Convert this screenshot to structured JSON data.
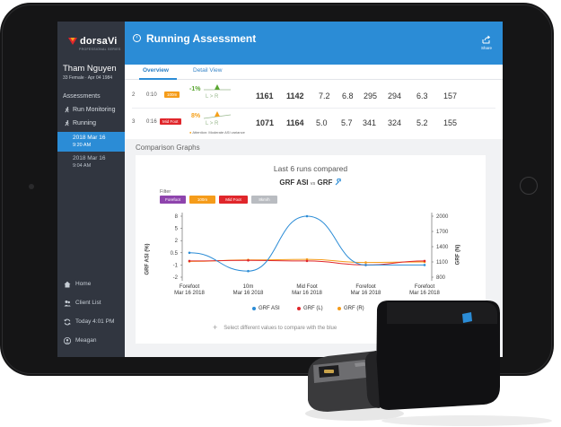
{
  "app": {
    "brand": "dorsaVi",
    "brand_tagline": "PROFESSIONAL SERIES"
  },
  "sidebar": {
    "patient_name": "Tham Nguyen",
    "patient_details": "33 Female · Apr 04 1984",
    "menu_label": "Assessments",
    "items": [
      {
        "label": "Run Monitoring",
        "icon": "runner-icon"
      },
      {
        "label": "Running",
        "icon": "runner-icon"
      }
    ],
    "runs": [
      {
        "date": "2018 Mar 16",
        "time": "9:20 AM",
        "active": true
      },
      {
        "date": "2018 Mar 16",
        "time": "9:04 AM",
        "active": false
      }
    ],
    "bottom": [
      {
        "label": "Home",
        "icon": "home-icon"
      },
      {
        "label": "Client List",
        "icon": "users-icon"
      },
      {
        "label": "Today 4:01 PM",
        "icon": "sync-icon"
      },
      {
        "label": "Meagan",
        "icon": "user-icon"
      }
    ]
  },
  "header": {
    "title": "Running Assessment",
    "share_label": "Share",
    "tabs": [
      "Overview",
      "Detail View"
    ]
  },
  "table": {
    "rows": [
      {
        "index": "2",
        "time": "0:10",
        "tag": "100m",
        "tag_color": "#f59c1a",
        "pct": "-1%",
        "pct_color": "#5aa631",
        "lr": "L > R",
        "v1": "1161",
        "v2": "1142",
        "v3": "7.2",
        "v4": "6.8",
        "v5": "295",
        "v6": "294",
        "v7": "6.3",
        "v8": "157"
      },
      {
        "index": "3",
        "time": "0:16",
        "tag": "Mid Foot",
        "tag_color": "#e0262b",
        "pct": "8%",
        "pct_color": "#f5a01a",
        "lr": "L > R",
        "warning": "Attention: Moderate ASI variance",
        "v1": "1071",
        "v2": "1164",
        "v3": "5.0",
        "v4": "5.7",
        "v5": "341",
        "v6": "324",
        "v7": "5.2",
        "v8": "155"
      }
    ]
  },
  "comparison": {
    "section_title": "Comparison Graphs",
    "subtitle": "Last 6 runs compared",
    "title_left": "GRF ASI",
    "title_vs": "vs",
    "title_right": "GRF",
    "filter_label": "Filter",
    "filters": [
      {
        "label": "Forefoot",
        "color": "#8e44ad"
      },
      {
        "label": "100m",
        "color": "#f59c1a"
      },
      {
        "label": "Mid Foot",
        "color": "#e0262b"
      },
      {
        "label": "8km/h",
        "color": "#b9bcc1"
      }
    ],
    "legend": [
      {
        "label": "GRF ASI",
        "color": "#2b8cd6"
      },
      {
        "label": "GRF (L)",
        "color": "#e0262b"
      },
      {
        "label": "GRF (R)",
        "color": "#f59c1a"
      }
    ],
    "hint": "Select different values to compare with the blue"
  },
  "chart_data": {
    "type": "line",
    "x_labels": [
      {
        "top": "Forefoot",
        "bottom": "Mar 16 2018"
      },
      {
        "top": "10m",
        "bottom": "Mar 16 2018"
      },
      {
        "top": "Mid Foot",
        "bottom": "Mar 16 2018"
      },
      {
        "top": "Forefoot",
        "bottom": "Mar 16 2018"
      },
      {
        "top": "Forefoot",
        "bottom": "Mar 16 2018"
      }
    ],
    "y_left": {
      "label": "GRF ASI (%)",
      "ticks": [
        "8",
        "5",
        "2",
        "0.5",
        "-1",
        "-2"
      ]
    },
    "y_right": {
      "label": "GRF (N)",
      "ticks": [
        "2000",
        "1700",
        "1400",
        "1100",
        "800"
      ]
    },
    "series": [
      {
        "name": "GRF ASI",
        "color": "#2b8cd6",
        "axis": "left",
        "values": [
          0.5,
          -1.5,
          8,
          -1,
          -1
        ]
      },
      {
        "name": "GRF (L)",
        "color": "#e0262b",
        "axis": "right",
        "values": [
          1120,
          1130,
          1120,
          1040,
          1120
        ]
      },
      {
        "name": "GRF (R)",
        "color": "#f59c1a",
        "axis": "right",
        "values": [
          1110,
          1140,
          1150,
          1090,
          1100
        ]
      }
    ]
  }
}
